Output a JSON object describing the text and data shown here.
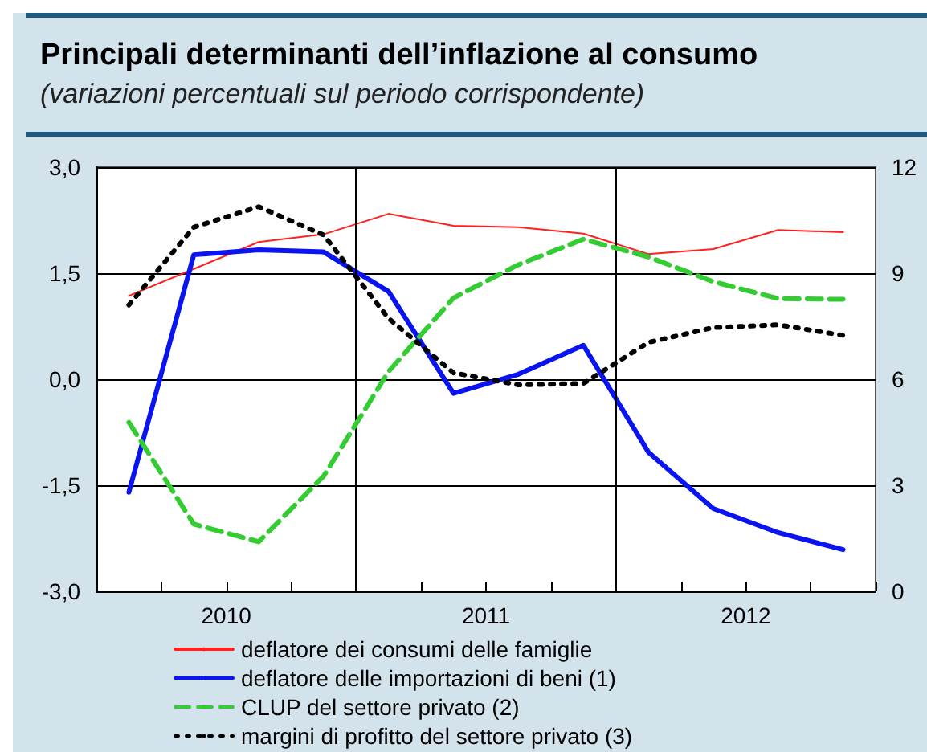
{
  "chart_data": {
    "type": "line",
    "title": "Principali determinanti dell’inflazione al consumo",
    "subtitle": "(variazioni percentuali sul periodo corrispondente)",
    "x": [
      2010.125,
      2010.375,
      2010.625,
      2010.875,
      2011.125,
      2011.375,
      2011.625,
      2011.875,
      2012.125,
      2012.375,
      2012.625,
      2012.875
    ],
    "series": [
      {
        "name": "deflatore dei consumi delle famiglie",
        "color": "#ff2020",
        "line_style": "solid",
        "values": [
          1.18,
          1.56,
          1.94,
          2.05,
          2.34,
          2.17,
          2.15,
          2.06,
          1.77,
          1.84,
          2.11,
          2.08
        ]
      },
      {
        "name": "deflatore delle importazioni di beni (1)",
        "color": "#0a14f0",
        "line_style": "solid",
        "values": [
          -1.6,
          1.76,
          1.83,
          1.8,
          1.24,
          -0.2,
          0.07,
          0.48,
          -1.03,
          -1.83,
          -2.17,
          -2.41
        ]
      },
      {
        "name": "CLUP del settore privato (2)",
        "color": "#33cc33",
        "line_style": "dashed",
        "values": [
          -0.61,
          -2.05,
          -2.3,
          -1.37,
          0.11,
          1.15,
          1.62,
          1.98,
          1.73,
          1.38,
          1.14,
          1.13
        ]
      },
      {
        "name": "margini di profitto del settore privato (3)",
        "color": "#000000",
        "line_style": "dotted",
        "values": [
          1.05,
          2.15,
          2.44,
          2.04,
          0.86,
          0.09,
          -0.08,
          -0.06,
          0.52,
          0.73,
          0.77,
          0.62
        ]
      }
    ],
    "xlim": [
      2010,
      2013
    ],
    "xticks": [
      {
        "value": 2010,
        "label": null
      },
      {
        "value": 2010.25,
        "label": null
      },
      {
        "value": 2010.5,
        "label": "2010"
      },
      {
        "value": 2010.75,
        "label": null
      },
      {
        "value": 2011,
        "label": null
      },
      {
        "value": 2011.25,
        "label": null
      },
      {
        "value": 2011.5,
        "label": "2011"
      },
      {
        "value": 2011.75,
        "label": null
      },
      {
        "value": 2012,
        "label": null
      },
      {
        "value": 2012.25,
        "label": null
      },
      {
        "value": 2012.5,
        "label": "2012"
      },
      {
        "value": 2012.75,
        "label": null
      },
      {
        "value": 2013,
        "label": null
      }
    ],
    "ylim": [
      -3,
      3
    ],
    "yticks": [
      {
        "value": -3,
        "label": "-3,0"
      },
      {
        "value": -1.5,
        "label": "-1,5"
      },
      {
        "value": 0,
        "label": "0,0"
      },
      {
        "value": 1.5,
        "label": "1,5"
      },
      {
        "value": 3,
        "label": "3,0"
      }
    ],
    "y2lim": [
      0,
      12
    ],
    "y2ticks": [
      0,
      3,
      6,
      9,
      12
    ],
    "ref_lines": [
      {
        "axis": "x",
        "value": 2011,
        "color": "#000000"
      },
      {
        "axis": "x",
        "value": 2012,
        "color": "#000000"
      }
    ],
    "grid": "y",
    "legend": "bottom",
    "marker": "none"
  }
}
